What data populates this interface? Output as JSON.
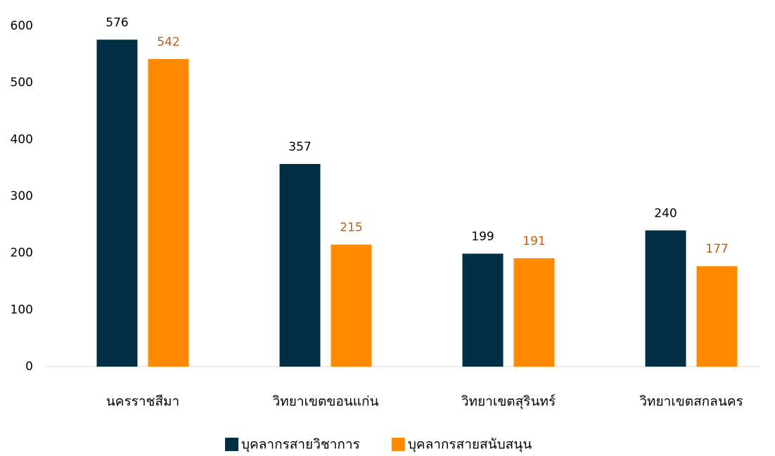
{
  "chart_data": {
    "type": "bar",
    "categories": [
      "นครราชสีมา",
      "วิทยาเขตขอนแก่น",
      "วิทยาเขตสุรินทร์",
      "วิทยาเขตสกลนคร"
    ],
    "series": [
      {
        "name": "บุคลากรสายวิชาการ",
        "color": "#002f45",
        "label_color": "#000000",
        "values": [
          576,
          357,
          199,
          240
        ]
      },
      {
        "name": "บุคลากรสายสนับสนุน",
        "color": "#ff8a00",
        "label_color": "#c55a11",
        "values": [
          542,
          215,
          191,
          177
        ]
      }
    ],
    "ylim": [
      0,
      600
    ],
    "yticks": [
      0,
      100,
      200,
      300,
      400,
      500,
      600
    ],
    "grid": false,
    "legend": "bottom"
  }
}
